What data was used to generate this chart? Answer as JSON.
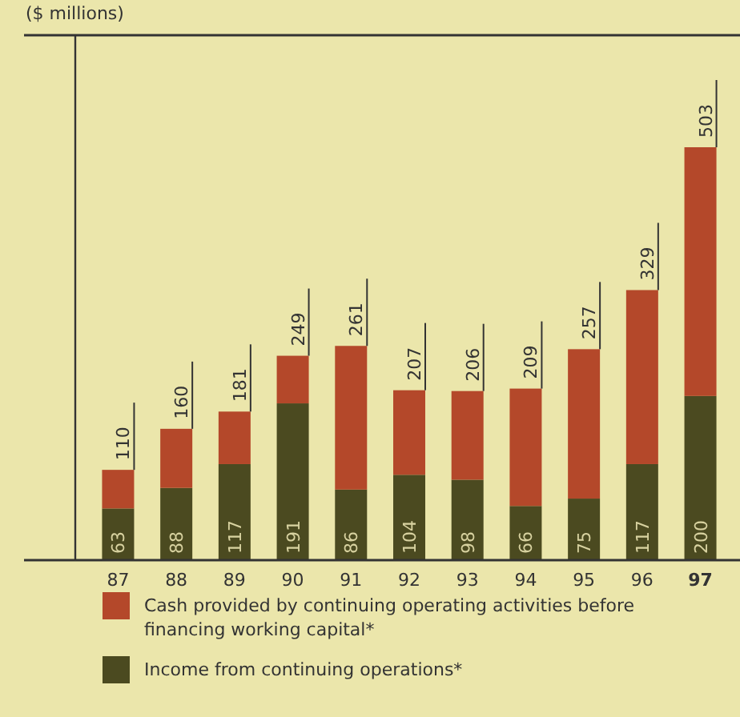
{
  "chart_data": {
    "type": "bar",
    "title": "($ millions)",
    "stacked": true,
    "legend": "bottom",
    "categories": [
      "87",
      "88",
      "89",
      "90",
      "91",
      "92",
      "93",
      "94",
      "95",
      "96",
      "97"
    ],
    "series": [
      {
        "name": "Income from continuing operations*",
        "color": "#4b4a20",
        "values": [
          63,
          88,
          117,
          191,
          86,
          104,
          98,
          66,
          75,
          117,
          200
        ],
        "value_labels": [
          "63",
          "88",
          "117",
          "191",
          "86",
          "104",
          "98",
          "66",
          "75",
          "117",
          "200"
        ]
      },
      {
        "name": "Cash provided by continuing operating activities before financing working capital*",
        "color": "#b4482a",
        "values": [
          47,
          72,
          64,
          58,
          175,
          103,
          108,
          143,
          182,
          212,
          303
        ]
      }
    ],
    "totals": [
      "110",
      "160",
      "181",
      "249",
      "261",
      "207",
      "206",
      "209",
      "257",
      "329",
      "503"
    ]
  }
}
